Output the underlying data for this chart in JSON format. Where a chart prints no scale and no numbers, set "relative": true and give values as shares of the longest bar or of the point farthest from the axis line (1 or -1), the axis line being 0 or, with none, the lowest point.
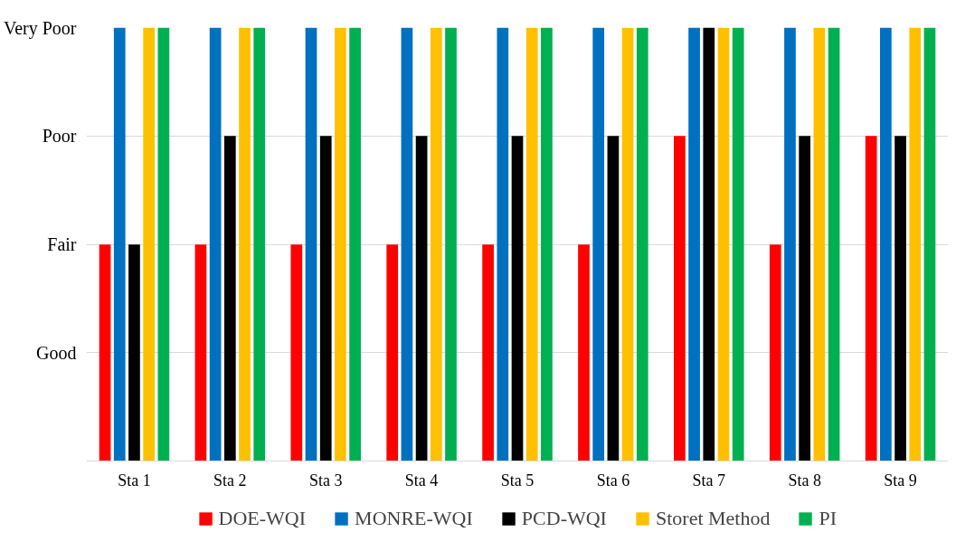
{
  "chart_data": {
    "type": "bar",
    "categories": [
      "Sta 1",
      "Sta 2",
      "Sta 3",
      "Sta 4",
      "Sta 5",
      "Sta 6",
      "Sta 7",
      "Sta 8",
      "Sta 9"
    ],
    "series": [
      {
        "name": "DOE-WQI",
        "color": "#ff0000",
        "values": [
          0.5,
          0.5,
          0.5,
          0.5,
          0.5,
          0.5,
          0.75,
          0.5,
          0.75
        ]
      },
      {
        "name": "MONRE-WQI",
        "color": "#0070c0",
        "values": [
          1,
          1,
          1,
          1,
          1,
          1,
          1,
          1,
          1
        ]
      },
      {
        "name": "PCD-WQI",
        "color": "#000000",
        "values": [
          0.5,
          0.75,
          0.75,
          0.75,
          0.75,
          0.75,
          1,
          0.75,
          0.75
        ]
      },
      {
        "name": "Storet Method",
        "color": "#ffc000",
        "values": [
          1,
          1,
          1,
          1,
          1,
          1,
          1,
          1,
          1
        ]
      },
      {
        "name": "PI",
        "color": "#00b050",
        "values": [
          1,
          1,
          1,
          1,
          1,
          1,
          1,
          1,
          1
        ]
      }
    ],
    "relative": true,
    "annotations": [
      "Good",
      "Fair",
      "Poor",
      "Very Poor"
    ],
    "grid": "y",
    "legend": "bottom"
  }
}
